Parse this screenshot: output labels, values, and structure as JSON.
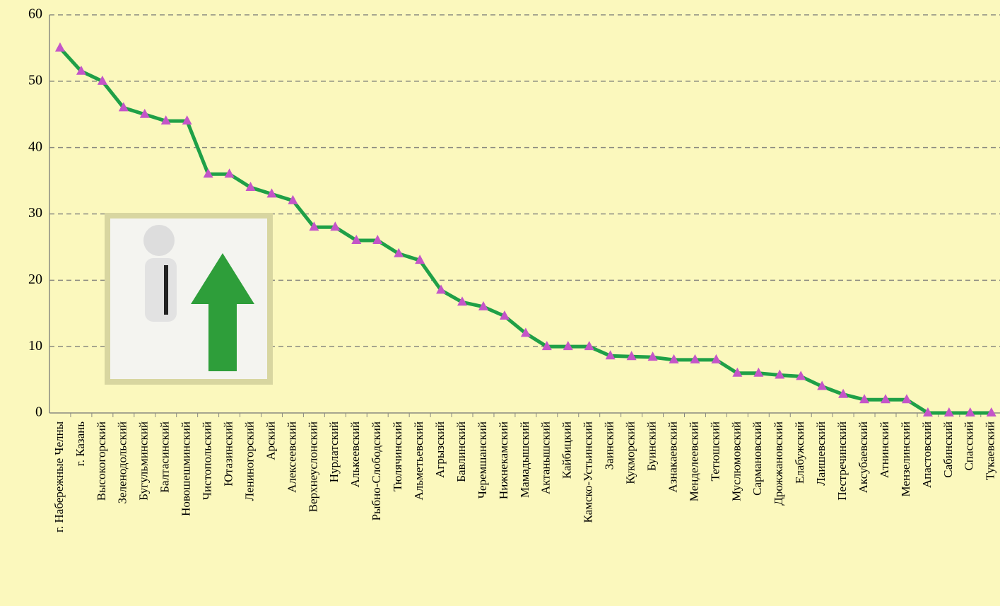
{
  "chart_data": {
    "type": "line",
    "categories": [
      "г. Набережные Челны",
      "г. Казань",
      "Высокогорский",
      "Зеленодольский",
      "Бугульминский",
      "Балтасинский",
      "Новошешминский",
      "Чистопольский",
      "Ютазинский",
      "Лениногорский",
      "Арский",
      "Алексеевский",
      "Верхнеуслонский",
      "Нурлатский",
      "Алькеевский",
      "Рыбно-Слободский",
      "Тюлячинский",
      "Альметьевский",
      "Агрызский",
      "Бавлинский",
      "Черемшанский",
      "Нижнекамский",
      "Мамадышский",
      "Актанышский",
      "Кайбицкий",
      "Камско-Устьинский",
      "Заинский",
      "Кукморский",
      "Буинский",
      "Азнакаевский",
      "Менделеевский",
      "Тетюшский",
      "Муслюмовский",
      "Сармановский",
      "Дрожжановский",
      "Елабужский",
      "Лаишевский",
      "Пестречинский",
      "Аксубаевский",
      "Атнинский",
      "Мензелинский",
      "Апастовский",
      "Сабинский",
      "Спасский",
      "Тукаевский"
    ],
    "values": [
      55,
      51.5,
      50,
      46,
      45,
      44,
      44,
      36,
      36,
      34,
      33,
      32,
      28,
      28,
      26,
      26,
      24,
      23,
      18.5,
      16.7,
      16,
      14.6,
      12,
      10,
      10,
      10,
      8.6,
      8.5,
      8.4,
      8,
      8,
      8,
      6,
      6,
      5.7,
      5.5,
      4,
      2.8,
      2,
      2,
      2,
      0,
      0,
      0,
      0
    ],
    "color": "#1fa047",
    "marker_color": "#c455c8",
    "ylim": [
      0,
      60
    ],
    "yticks": [
      0,
      10,
      20,
      30,
      40,
      50,
      60
    ],
    "grid": true
  }
}
